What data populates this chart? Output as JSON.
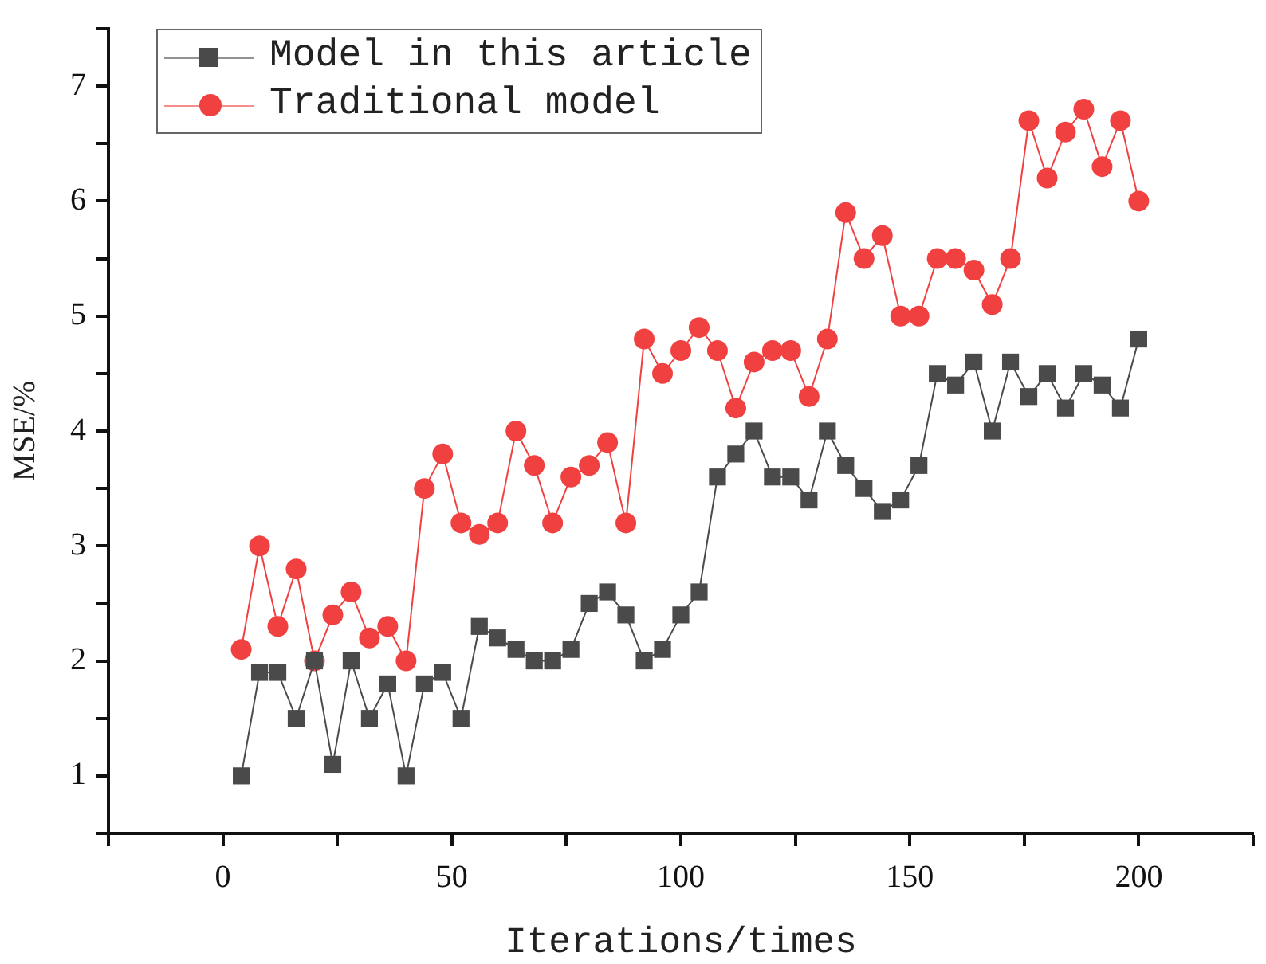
{
  "chart_data": {
    "type": "line",
    "xlabel": "Iterations/times",
    "ylabel": "MSE/%",
    "x": [
      4,
      8,
      12,
      16,
      20,
      24,
      28,
      32,
      36,
      40,
      44,
      48,
      52,
      56,
      60,
      64,
      68,
      72,
      76,
      80,
      84,
      88,
      92,
      96,
      100,
      104,
      108,
      112,
      116,
      120,
      124,
      128,
      132,
      136,
      140,
      144,
      148,
      152,
      156,
      160,
      164,
      168,
      172,
      176,
      180,
      184,
      188,
      192,
      196,
      200
    ],
    "series": [
      {
        "name": "Model in this article",
        "color": "#4a4a4a",
        "marker": "square",
        "values": [
          1.0,
          1.9,
          1.9,
          1.5,
          2.0,
          1.1,
          2.0,
          1.5,
          1.8,
          1.0,
          1.8,
          1.9,
          1.5,
          2.3,
          2.2,
          2.1,
          2.0,
          2.0,
          2.1,
          2.5,
          2.6,
          2.4,
          2.0,
          2.1,
          2.4,
          2.6,
          3.6,
          3.8,
          4.0,
          3.6,
          3.6,
          3.4,
          4.0,
          3.7,
          3.5,
          3.3,
          3.4,
          3.7,
          4.5,
          4.4,
          4.6,
          4.0,
          4.6,
          4.3,
          4.5,
          4.2,
          4.5,
          4.4,
          4.2,
          4.8
        ]
      },
      {
        "name": "Traditional model",
        "color": "#f04040",
        "marker": "circle",
        "values": [
          2.1,
          3.0,
          2.3,
          2.8,
          2.0,
          2.4,
          2.6,
          2.2,
          2.3,
          2.0,
          3.5,
          3.8,
          3.2,
          3.1,
          3.2,
          4.0,
          3.7,
          3.2,
          3.6,
          3.7,
          3.9,
          3.2,
          4.8,
          4.5,
          4.7,
          4.9,
          4.7,
          4.2,
          4.6,
          4.7,
          4.7,
          4.3,
          4.8,
          5.9,
          5.5,
          5.7,
          5.0,
          5.0,
          5.5,
          5.5,
          5.4,
          5.1,
          5.5,
          6.7,
          6.2,
          6.6,
          6.8,
          6.3,
          6.7,
          6.0
        ]
      }
    ],
    "xlim": [
      -25,
      225
    ],
    "xticks": [
      {
        "value": -25,
        "label": null
      },
      0,
      {
        "value": 25,
        "label": null
      },
      50,
      {
        "value": 75,
        "label": null
      },
      100,
      {
        "value": 125,
        "label": null
      },
      150,
      {
        "value": 175,
        "label": null
      },
      200,
      {
        "value": 225,
        "label": null
      }
    ],
    "ylim": [
      0.5,
      7.5
    ],
    "yticks": [
      {
        "value": 0.5,
        "label": null
      },
      1,
      {
        "value": 1.5,
        "label": null
      },
      2,
      {
        "value": 2.5,
        "label": null
      },
      3,
      {
        "value": 3.5,
        "label": null
      },
      4,
      {
        "value": 4.5,
        "label": null
      },
      5,
      {
        "value": 5.5,
        "label": null
      },
      6,
      {
        "value": 6.5,
        "label": null
      },
      7,
      {
        "value": 7.5,
        "label": null
      }
    ],
    "grid": false,
    "legend": "top left",
    "line_style": "solid"
  }
}
